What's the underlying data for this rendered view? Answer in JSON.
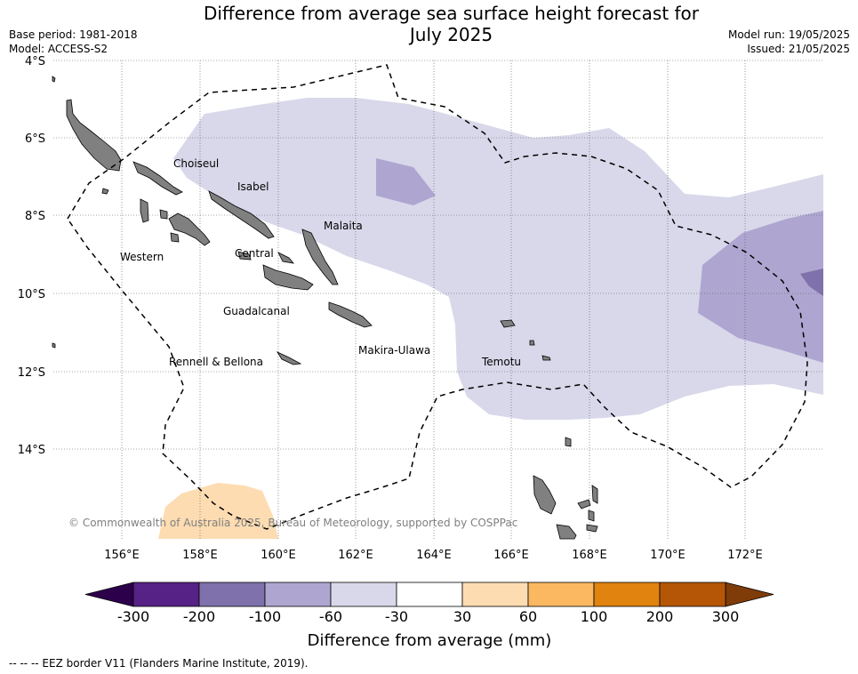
{
  "title_line1": "Difference from average sea surface height forecast for",
  "title_line2": "July 2025",
  "base_period": "Base period: 1981-2018",
  "model": "Model: ACCESS-S2",
  "model_run": "Model run: 19/05/2025",
  "issued": "Issued: 21/05/2025",
  "copyright": "© Commonwealth of Australia 2025, Bureau of Meteorology, supported by COSPPac",
  "footer": "--  --  -- EEZ border V11 (Flanders Marine Institute, 2019).",
  "lat_labels": [
    "4°S",
    "6°S",
    "8°S",
    "10°S",
    "12°S",
    "14°S"
  ],
  "lon_labels": [
    "156°E",
    "158°E",
    "160°E",
    "162°E",
    "164°E",
    "166°E",
    "168°E",
    "170°E",
    "172°E"
  ],
  "regions": [
    "Choiseul",
    "Isabel",
    "Malaita",
    "Western",
    "Central",
    "Guadalcanal",
    "Makira-Ulawa",
    "Rennell & Bellona",
    "Temotu"
  ],
  "colorbar": {
    "title": "Difference from average (mm)",
    "ticks": [
      "-300",
      "-200",
      "-100",
      "-60",
      "-30",
      "30",
      "60",
      "100",
      "200",
      "300"
    ],
    "colors": [
      "#562285",
      "#7f71ab",
      "#aea6d0",
      "#d8d8ea",
      "#ffffff",
      "#fddcb2",
      "#fbb860",
      "#e0830f",
      "#b45606"
    ],
    "under_color": "#2d004b",
    "over_color": "#7f3b08"
  },
  "colors": {
    "land": "#808080",
    "shade_light_purple": "#d8d8ea",
    "shade_mid_purple": "#aea6d0",
    "shade_dark_purple": "#7f71ab",
    "shade_light_orange": "#fddcb2"
  }
}
